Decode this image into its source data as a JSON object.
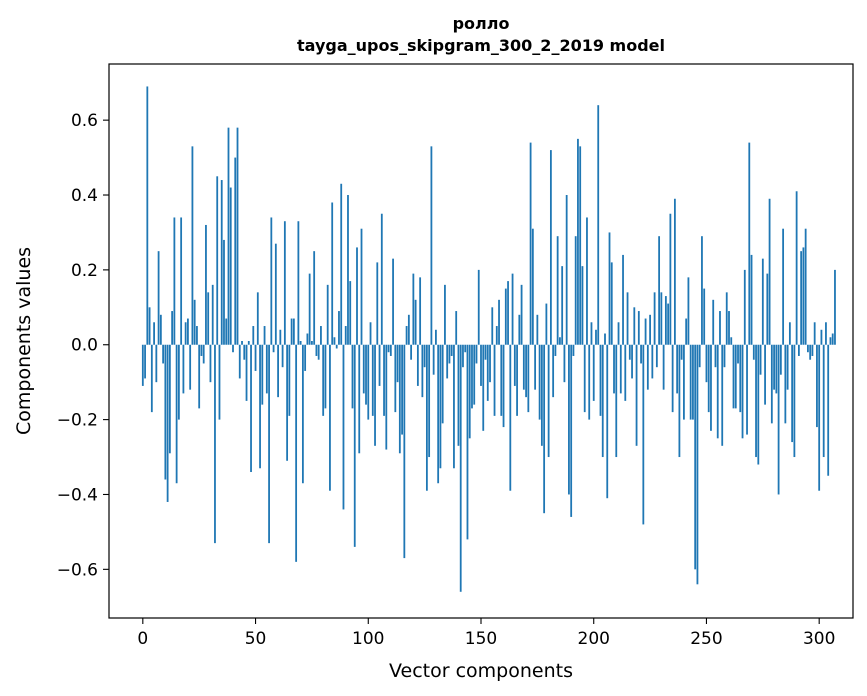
{
  "chart_data": {
    "type": "bar",
    "title": [
      "ролло",
      "tayga_upos_skipgram_300_2_2019 model"
    ],
    "xlabel": "Vector components",
    "ylabel": "Components values",
    "xlim": [
      -15,
      315
    ],
    "ylim": [
      -0.73,
      0.75
    ],
    "xticks": [
      0,
      50,
      100,
      150,
      200,
      250,
      300
    ],
    "xtick_labels": [
      "0",
      "50",
      "100",
      "150",
      "200",
      "250",
      "300"
    ],
    "yticks": [
      -0.6,
      -0.4,
      -0.2,
      0.0,
      0.2,
      0.4,
      0.6
    ],
    "ytick_labels": [
      "−0.6",
      "−0.4",
      "−0.2",
      "0.0",
      "0.2",
      "0.4",
      "0.6"
    ],
    "bar_color": "#1f77b4",
    "values": [
      -0.11,
      -0.09,
      0.69,
      0.1,
      -0.18,
      0.06,
      -0.1,
      0.25,
      0.08,
      -0.05,
      -0.36,
      -0.42,
      -0.29,
      0.09,
      0.34,
      -0.37,
      -0.2,
      0.34,
      -0.13,
      0.06,
      0.07,
      -0.12,
      0.53,
      0.12,
      0.05,
      -0.17,
      -0.03,
      -0.05,
      0.32,
      0.14,
      -0.1,
      0.16,
      -0.53,
      0.45,
      -0.2,
      0.44,
      0.28,
      0.07,
      0.58,
      0.42,
      -0.02,
      0.5,
      0.58,
      -0.09,
      0.01,
      -0.04,
      -0.15,
      0.01,
      -0.34,
      0.05,
      -0.07,
      0.14,
      -0.33,
      -0.16,
      0.05,
      -0.13,
      -0.53,
      0.34,
      -0.02,
      0.27,
      -0.14,
      0.04,
      -0.06,
      0.33,
      -0.31,
      -0.19,
      0.07,
      0.07,
      -0.58,
      0.33,
      0.01,
      -0.37,
      -0.07,
      0.03,
      0.19,
      0.01,
      0.25,
      -0.03,
      -0.04,
      0.05,
      -0.19,
      -0.17,
      0.16,
      -0.39,
      0.38,
      0.02,
      -0.01,
      0.09,
      0.43,
      -0.44,
      0.05,
      0.4,
      0.17,
      -0.17,
      -0.54,
      0.26,
      -0.29,
      0.31,
      -0.13,
      -0.16,
      -0.2,
      0.06,
      -0.19,
      -0.27,
      0.22,
      -0.11,
      0.35,
      -0.19,
      -0.28,
      -0.02,
      -0.03,
      0.23,
      -0.18,
      -0.1,
      -0.29,
      -0.24,
      -0.57,
      0.05,
      0.08,
      -0.04,
      0.19,
      0.12,
      -0.11,
      0.18,
      -0.14,
      -0.06,
      -0.39,
      -0.3,
      0.53,
      -0.08,
      0.04,
      -0.37,
      -0.33,
      -0.21,
      0.16,
      -0.09,
      -0.05,
      -0.03,
      -0.33,
      0.09,
      -0.27,
      -0.66,
      -0.06,
      -0.02,
      -0.52,
      -0.25,
      -0.17,
      -0.16,
      -0.05,
      0.2,
      -0.11,
      -0.23,
      -0.04,
      -0.15,
      -0.1,
      0.1,
      -0.19,
      0.05,
      0.12,
      -0.19,
      -0.22,
      0.15,
      0.17,
      -0.39,
      0.19,
      -0.11,
      -0.19,
      0.08,
      0.16,
      -0.12,
      -0.14,
      -0.18,
      0.54,
      0.31,
      -0.12,
      0.08,
      -0.2,
      -0.27,
      -0.45,
      0.11,
      -0.3,
      0.52,
      -0.14,
      -0.03,
      0.29,
      0.02,
      0.21,
      -0.1,
      0.4,
      -0.4,
      -0.46,
      -0.03,
      0.29,
      0.55,
      0.53,
      0.21,
      -0.18,
      0.34,
      -0.2,
      0.06,
      -0.15,
      0.04,
      0.64,
      -0.19,
      -0.3,
      0.03,
      -0.41,
      0.3,
      0.22,
      -0.13,
      -0.3,
      0.06,
      -0.13,
      0.24,
      -0.15,
      0.14,
      -0.04,
      -0.09,
      0.1,
      -0.27,
      0.09,
      -0.05,
      -0.48,
      0.07,
      -0.12,
      0.08,
      -0.09,
      0.14,
      -0.06,
      0.29,
      0.14,
      -0.12,
      0.13,
      0.11,
      0.35,
      -0.18,
      0.39,
      -0.13,
      -0.3,
      -0.04,
      -0.2,
      0.07,
      0.18,
      -0.2,
      -0.2,
      -0.6,
      -0.64,
      -0.06,
      0.29,
      0.15,
      -0.1,
      -0.18,
      -0.23,
      0.12,
      -0.06,
      -0.25,
      0.09,
      -0.27,
      -0.06,
      0.14,
      0.09,
      0.02,
      -0.17,
      -0.17,
      -0.05,
      -0.18,
      -0.25,
      0.2,
      -0.24,
      0.54,
      0.24,
      -0.04,
      -0.3,
      -0.32,
      -0.08,
      0.23,
      -0.16,
      0.19,
      0.39,
      -0.21,
      -0.12,
      -0.13,
      -0.4,
      -0.08,
      0.31,
      -0.21,
      -0.12,
      0.06,
      -0.26,
      -0.3,
      0.41,
      -0.03,
      0.25,
      0.26,
      0.31,
      -0.02,
      -0.04,
      -0.03,
      0.06,
      -0.22,
      -0.39,
      0.04,
      -0.3,
      0.06,
      -0.35,
      0.02,
      0.03,
      0.2
    ]
  }
}
